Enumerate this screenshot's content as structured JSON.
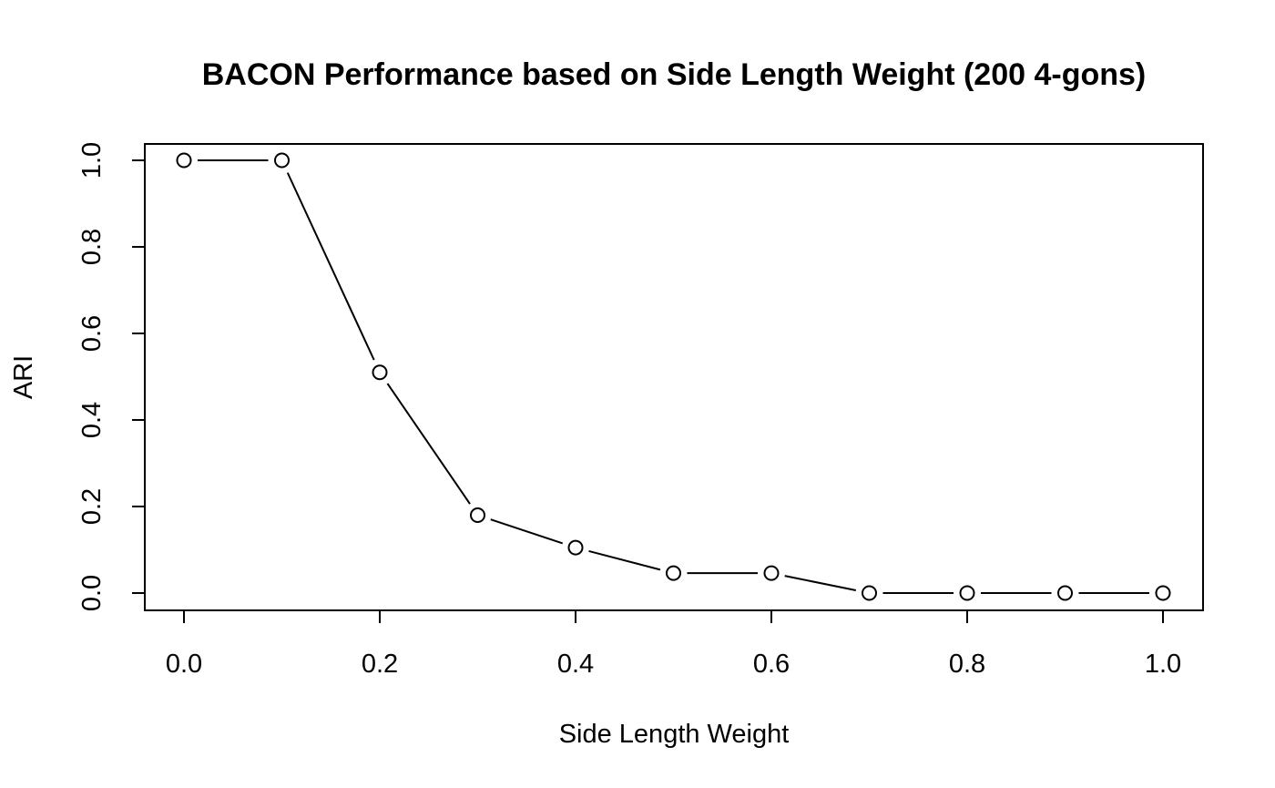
{
  "chart_data": {
    "type": "line",
    "title": "BACON Performance based on Side Length Weight (200 4-gons)",
    "xlabel": "Side Length Weight",
    "ylabel": "ARI",
    "xlim": [
      0.0,
      1.0
    ],
    "ylim": [
      0.0,
      1.0
    ],
    "x_ticks": [
      "0.0",
      "0.2",
      "0.4",
      "0.6",
      "0.8",
      "1.0"
    ],
    "y_ticks": [
      "0.0",
      "0.2",
      "0.4",
      "0.6",
      "0.8",
      "1.0"
    ],
    "x": [
      0.0,
      0.1,
      0.2,
      0.3,
      0.4,
      0.5,
      0.6,
      0.7,
      0.8,
      0.9,
      1.0
    ],
    "series": [
      {
        "values": [
          1.0,
          1.0,
          0.51,
          0.18,
          0.105,
          0.046,
          0.046,
          0.0,
          0.0,
          0.0,
          0.0
        ],
        "marker": "open-circle",
        "line_style": "solid",
        "color": "#000000"
      }
    ],
    "grid": false,
    "legend": "none"
  }
}
